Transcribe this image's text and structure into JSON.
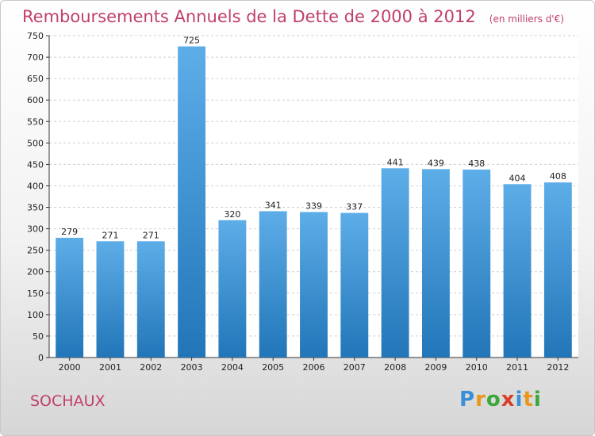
{
  "title": "Remboursements Annuels de la Dette de 2000 à 2012",
  "unit_note": "(en milliers d'€)",
  "city": "SOCHAUX",
  "logo": {
    "letters": [
      "P",
      "r",
      "o",
      "x",
      "i",
      "t",
      "i"
    ],
    "colors": [
      "#3a8fd6",
      "#e8961e",
      "#3aa83a",
      "#d8402a",
      "#3a8fd6",
      "#e8961e",
      "#3aa83a"
    ]
  },
  "colors": {
    "bar_light": "#5dade8",
    "bar_dark": "#2276b8",
    "title": "#c0406a"
  },
  "chart_data": {
    "type": "bar",
    "categories": [
      "2000",
      "2001",
      "2002",
      "2003",
      "2004",
      "2005",
      "2006",
      "2007",
      "2008",
      "2009",
      "2010",
      "2011",
      "2012"
    ],
    "values": [
      279,
      271,
      271,
      725,
      320,
      341,
      339,
      337,
      441,
      439,
      438,
      404,
      408
    ],
    "data_labels": [
      "279",
      "271",
      "271",
      "725",
      "320",
      "341",
      "339",
      "337",
      "441",
      "439",
      "438",
      "404",
      "408"
    ],
    "ylim": [
      0,
      750
    ],
    "yticks": [
      0,
      50,
      100,
      150,
      200,
      250,
      300,
      350,
      400,
      450,
      500,
      550,
      600,
      650,
      700,
      750
    ],
    "grid": true,
    "xlabel": "",
    "ylabel": ""
  }
}
